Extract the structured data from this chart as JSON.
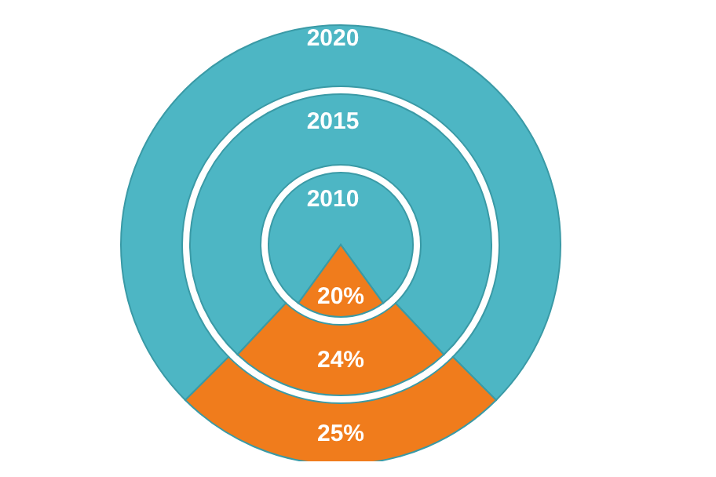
{
  "chart_data": {
    "type": "pie",
    "categories": [
      null,
      null
    ],
    "series": [
      {
        "name": "2010",
        "values": [
          80,
          20
        ],
        "colors": [
          "#4db6c4",
          "#f07c1c"
        ],
        "value_labels": [
          null,
          "20%"
        ]
      },
      {
        "name": "2015",
        "values": [
          76,
          24
        ],
        "colors": [
          "#4db6c4",
          "#f07c1c"
        ],
        "value_labels": [
          null,
          "24%"
        ]
      },
      {
        "name": "2020",
        "values": [
          75,
          25
        ],
        "colors": [
          "#4db6c4",
          "#f07c1c"
        ],
        "value_labels": [
          null,
          "25%"
        ]
      }
    ],
    "legend": false
  }
}
